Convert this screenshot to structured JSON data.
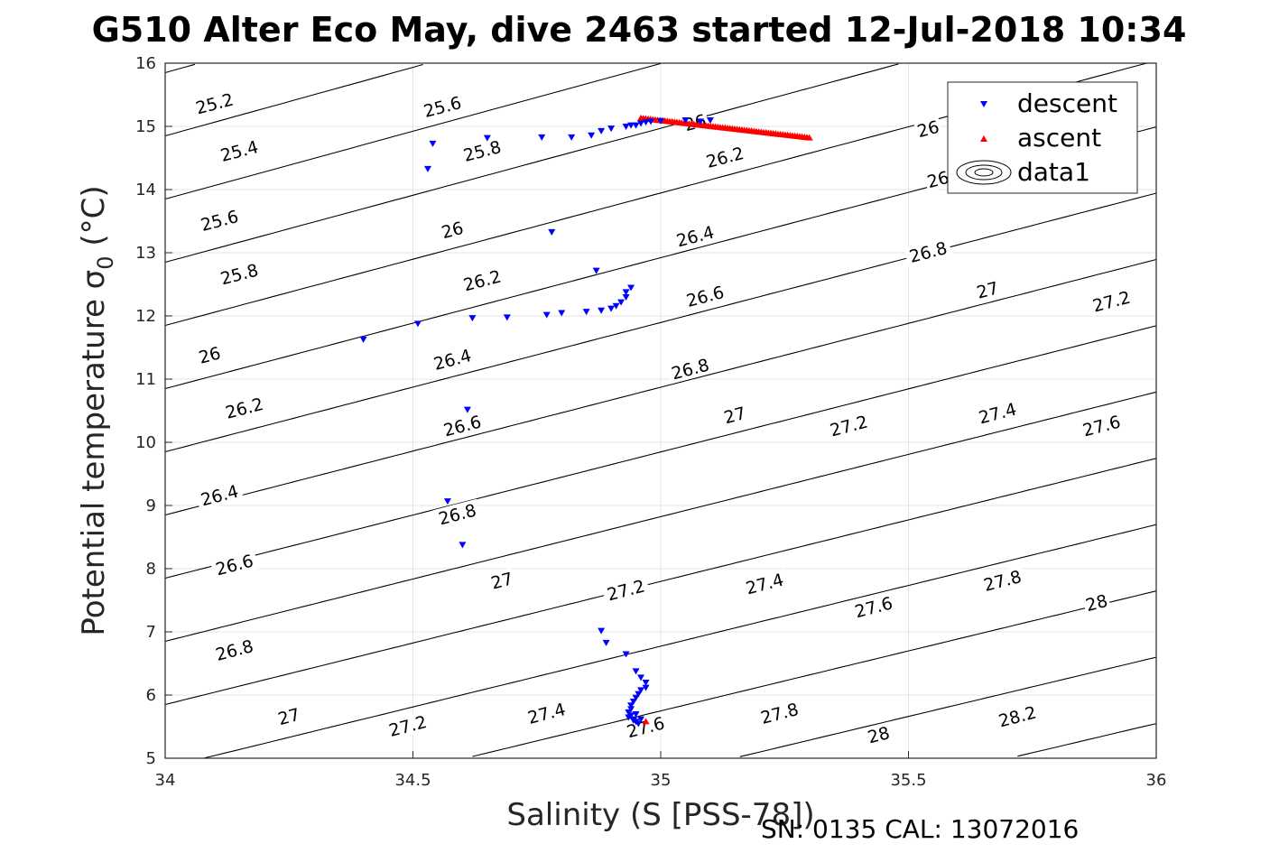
{
  "title": "G510 Alter Eco May, dive 2463 started 12-Jul-2018 10:34",
  "footer": "SN: 0135  CAL: 13072016",
  "chart_data": {
    "type": "scatter",
    "xlabel": "Salinity (S [PSS-78])",
    "ylabel_main": "Potential temperature σ",
    "ylabel_sub": "0",
    "ylabel_unit": " (°C)",
    "xlim": [
      34,
      36
    ],
    "ylim": [
      5,
      16
    ],
    "xticks": [
      "34",
      "34.5",
      "35",
      "35.5",
      "36"
    ],
    "yticks": [
      "5",
      "6",
      "7",
      "8",
      "9",
      "10",
      "11",
      "12",
      "13",
      "14",
      "15",
      "16"
    ],
    "grid": true,
    "legend_position": "top-right",
    "legend": [
      "descent",
      "ascent",
      "data1"
    ],
    "colors": {
      "descent": "#0000ff",
      "ascent": "#ff0000",
      "contour": "#000000"
    },
    "series": [
      {
        "name": "descent",
        "marker": "triangle-down",
        "points": [
          [
            34.4,
            11.63
          ],
          [
            34.51,
            11.88
          ],
          [
            34.53,
            14.33
          ],
          [
            34.54,
            14.73
          ],
          [
            34.62,
            11.97
          ],
          [
            34.61,
            10.52
          ],
          [
            34.57,
            9.07
          ],
          [
            34.6,
            8.38
          ],
          [
            34.65,
            14.82
          ],
          [
            34.69,
            11.98
          ],
          [
            34.76,
            14.83
          ],
          [
            34.77,
            12.02
          ],
          [
            34.78,
            13.33
          ],
          [
            34.8,
            12.05
          ],
          [
            34.82,
            14.83
          ],
          [
            34.85,
            12.07
          ],
          [
            34.86,
            14.86
          ],
          [
            34.87,
            12.72
          ],
          [
            34.88,
            14.93
          ],
          [
            34.88,
            12.09
          ],
          [
            34.9,
            12.12
          ],
          [
            34.9,
            14.97
          ],
          [
            34.91,
            12.16
          ],
          [
            34.92,
            12.22
          ],
          [
            34.93,
            12.3
          ],
          [
            34.93,
            12.38
          ],
          [
            34.94,
            12.45
          ],
          [
            34.93,
            15.0
          ],
          [
            34.94,
            15.02
          ],
          [
            34.95,
            15.02
          ],
          [
            34.96,
            15.05
          ],
          [
            34.97,
            15.07
          ],
          [
            34.98,
            15.08
          ],
          [
            35.0,
            15.09
          ],
          [
            35.05,
            15.1
          ],
          [
            35.08,
            15.08
          ],
          [
            35.1,
            15.1
          ],
          [
            34.88,
            7.02
          ],
          [
            34.89,
            6.83
          ],
          [
            34.93,
            6.65
          ],
          [
            34.95,
            6.38
          ],
          [
            34.96,
            6.28
          ],
          [
            34.97,
            6.2
          ],
          [
            34.97,
            6.12
          ],
          [
            34.96,
            6.08
          ],
          [
            34.955,
            6.02
          ],
          [
            34.95,
            5.96
          ],
          [
            34.945,
            5.9
          ],
          [
            34.94,
            5.84
          ],
          [
            34.94,
            5.78
          ],
          [
            34.935,
            5.73
          ],
          [
            34.94,
            5.68
          ],
          [
            34.945,
            5.62
          ],
          [
            34.95,
            5.58
          ],
          [
            34.955,
            5.55
          ],
          [
            34.945,
            5.6
          ],
          [
            34.935,
            5.65
          ],
          [
            34.95,
            5.7
          ],
          [
            34.96,
            5.62
          ]
        ]
      },
      {
        "name": "ascent",
        "marker": "triangle-up",
        "line_from": [
          34.96,
          15.13
        ],
        "line_to": [
          35.3,
          14.82
        ],
        "points": [
          [
            34.97,
            5.58
          ]
        ]
      }
    ],
    "contour_levels": [
      "25.2",
      "25.4",
      "25.6",
      "25.8",
      "26",
      "26.2",
      "26.4",
      "26.6",
      "26.8",
      "27",
      "27.2",
      "27.4",
      "27.6",
      "27.8",
      "28",
      "28.2"
    ],
    "contour_labels": [
      {
        "text": "25.2",
        "x": 34.1,
        "y": 15.35
      },
      {
        "text": "25.4",
        "x": 34.15,
        "y": 14.6
      },
      {
        "text": "25.6",
        "x": 34.11,
        "y": 13.5
      },
      {
        "text": "25.8",
        "x": 34.15,
        "y": 12.65
      },
      {
        "text": "26",
        "x": 34.09,
        "y": 11.37
      },
      {
        "text": "26.2",
        "x": 34.16,
        "y": 10.53
      },
      {
        "text": "26.4",
        "x": 34.11,
        "y": 9.15
      },
      {
        "text": "26.6",
        "x": 34.14,
        "y": 8.05
      },
      {
        "text": "26.8",
        "x": 34.14,
        "y": 6.7
      },
      {
        "text": "27",
        "x": 34.25,
        "y": 5.65
      },
      {
        "text": "27.2",
        "x": 34.49,
        "y": 5.5
      },
      {
        "text": "27.4",
        "x": 34.77,
        "y": 5.7
      },
      {
        "text": "27.6",
        "x": 34.97,
        "y": 5.48
      },
      {
        "text": "27.8",
        "x": 35.24,
        "y": 5.7
      },
      {
        "text": "28",
        "x": 35.44,
        "y": 5.36
      },
      {
        "text": "28.2",
        "x": 35.72,
        "y": 5.65
      },
      {
        "text": "25.6",
        "x": 34.56,
        "y": 15.3
      },
      {
        "text": "25.8",
        "x": 34.64,
        "y": 14.6
      },
      {
        "text": "26",
        "x": 34.58,
        "y": 13.35
      },
      {
        "text": "26.2",
        "x": 34.64,
        "y": 12.55
      },
      {
        "text": "26.4",
        "x": 34.58,
        "y": 11.3
      },
      {
        "text": "26.6",
        "x": 34.6,
        "y": 10.25
      },
      {
        "text": "26.8",
        "x": 34.59,
        "y": 8.85
      },
      {
        "text": "27",
        "x": 34.68,
        "y": 7.8
      },
      {
        "text": "27.2",
        "x": 34.93,
        "y": 7.65
      },
      {
        "text": "27.4",
        "x": 35.21,
        "y": 7.75
      },
      {
        "text": "27.6",
        "x": 35.43,
        "y": 7.38
      },
      {
        "text": "27.8",
        "x": 35.69,
        "y": 7.8
      },
      {
        "text": "28",
        "x": 35.88,
        "y": 7.45
      },
      {
        "text": "26",
        "x": 35.07,
        "y": 15.05
      },
      {
        "text": "26.2",
        "x": 35.13,
        "y": 14.5
      },
      {
        "text": "26.4",
        "x": 35.07,
        "y": 13.25
      },
      {
        "text": "26.6",
        "x": 35.09,
        "y": 12.3
      },
      {
        "text": "26.8",
        "x": 35.06,
        "y": 11.15
      },
      {
        "text": "27",
        "x": 35.15,
        "y": 10.42
      },
      {
        "text": "27.2",
        "x": 35.38,
        "y": 10.25
      },
      {
        "text": "27.4",
        "x": 35.68,
        "y": 10.45
      },
      {
        "text": "27.6",
        "x": 35.89,
        "y": 10.25
      },
      {
        "text": "26",
        "x": 35.54,
        "y": 14.95
      },
      {
        "text": "26",
        "x": 35.56,
        "y": 14.15
      },
      {
        "text": "26.8",
        "x": 35.54,
        "y": 13.0
      },
      {
        "text": "27",
        "x": 35.66,
        "y": 12.4
      },
      {
        "text": "27.2",
        "x": 35.91,
        "y": 12.22
      }
    ]
  }
}
